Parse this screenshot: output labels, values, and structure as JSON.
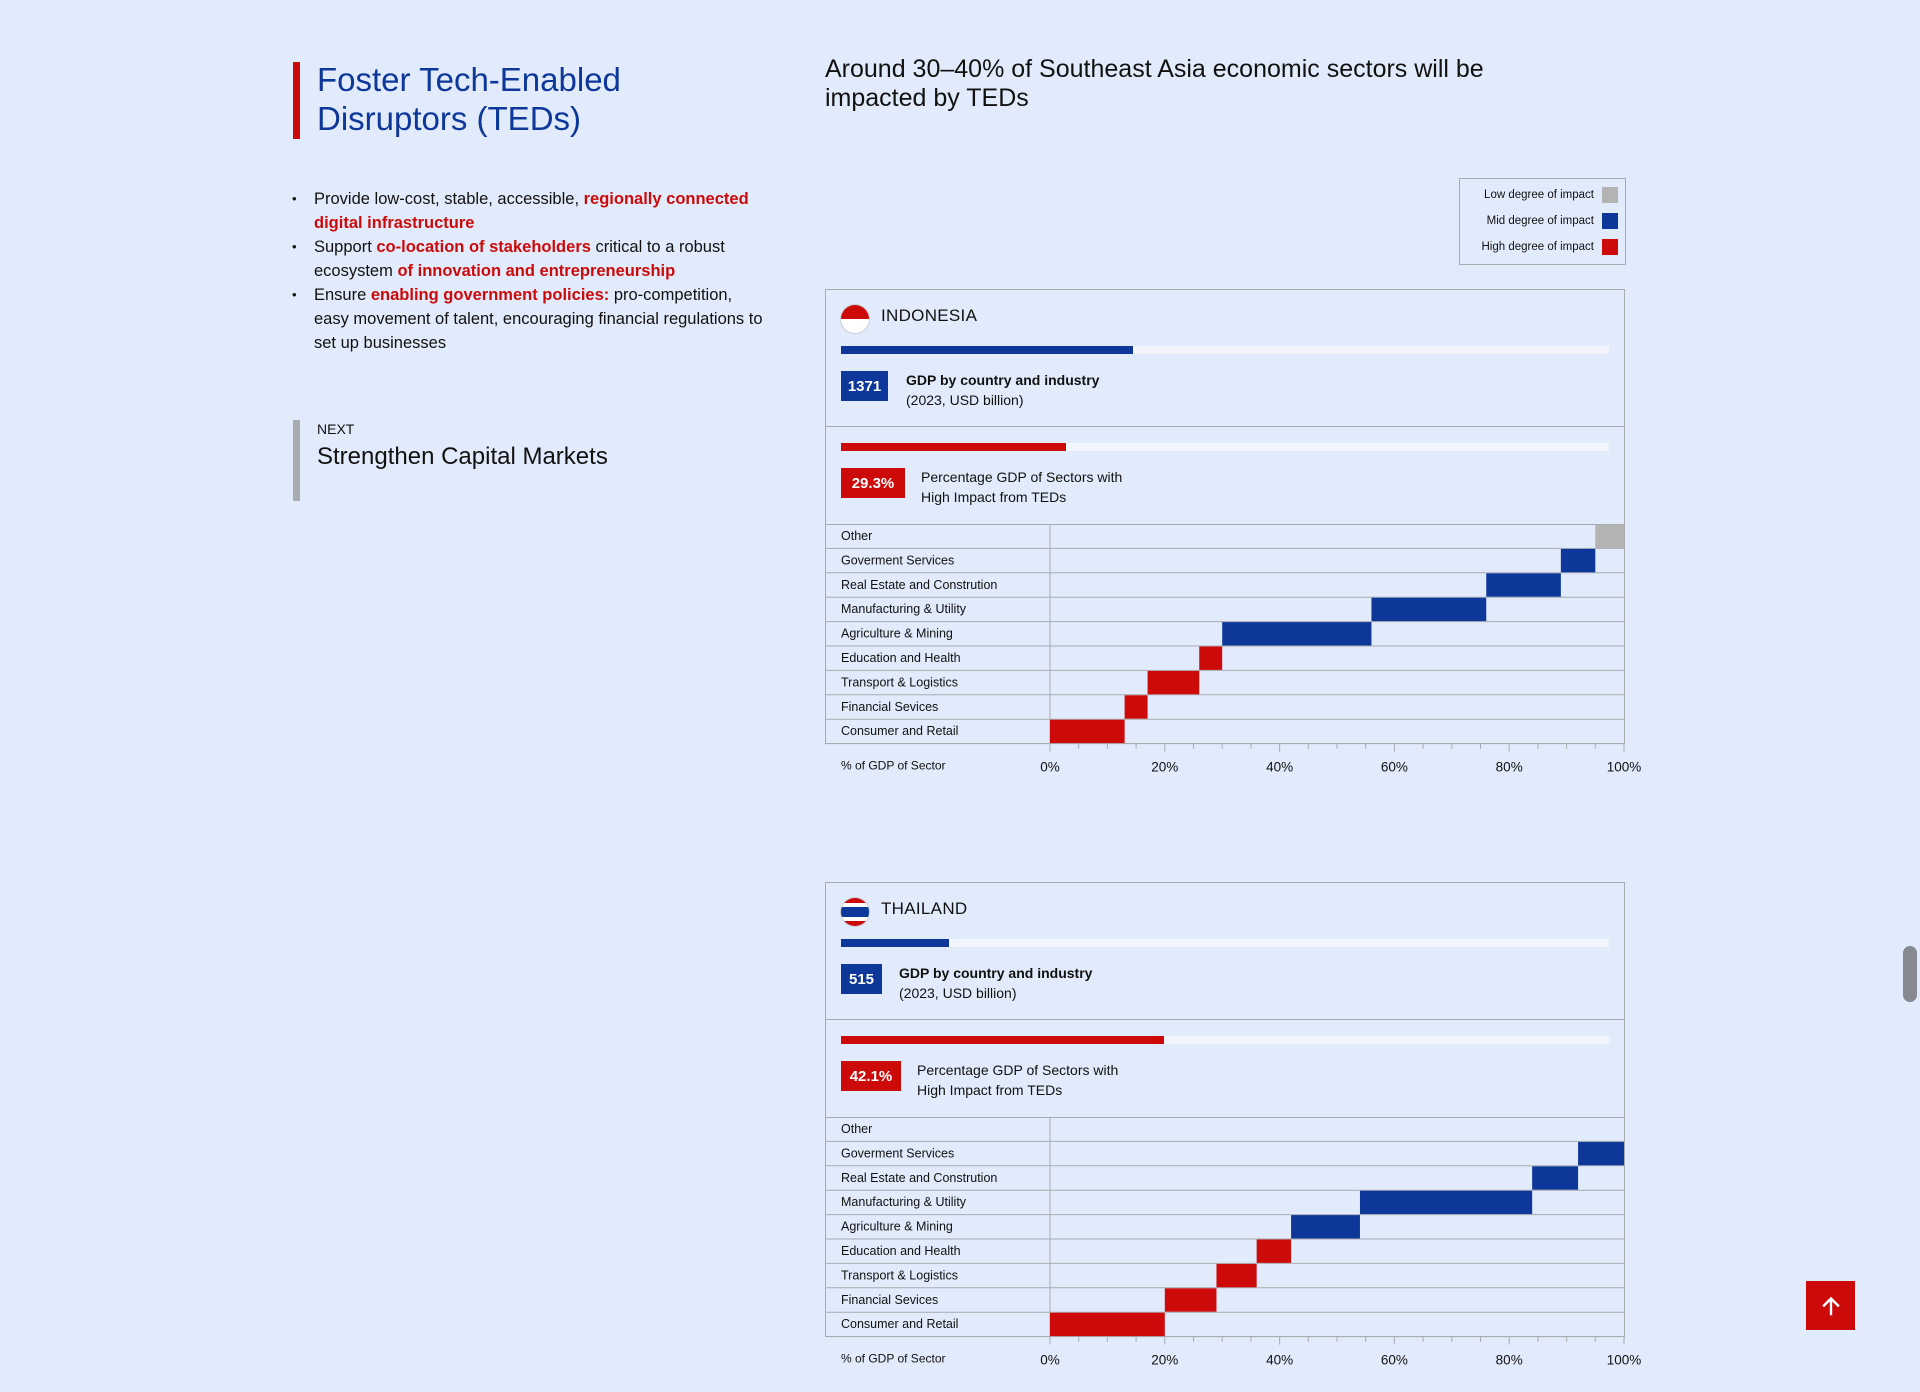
{
  "left": {
    "title_line1": "Foster Tech-Enabled",
    "title_line2": "Disruptors (TEDs)",
    "bullets": [
      {
        "a": "Provide low-cost, stable, accessible, ",
        "b": "regionally connected digital infrastructure",
        "c": ""
      },
      {
        "a": "Support ",
        "b": "co-location of stakeholders",
        "c": " critical to a robust ecosystem ",
        "d": "of innovation and entrepreneurship"
      },
      {
        "a": "Ensure ",
        "b": "enabling government policies:",
        "c": " pro-competition, easy movement of talent, encouraging financial regulations to set up businesses"
      }
    ],
    "next_label": "NEXT",
    "next_title": "Strengthen Capital Markets"
  },
  "heading": "Around 30–40% of Southeast Asia economic sectors will be impacted by TEDs",
  "legend": {
    "low": "Low degree of impact",
    "mid": "Mid degree of impact",
    "high": "High degree of impact"
  },
  "colors": {
    "low": "#b3b3b3",
    "mid": "#0d3799",
    "high": "#cc0a0a",
    "track": "#f2f5fc"
  },
  "panels": [
    {
      "country": "INDONESIA",
      "gdp_value": "1371",
      "gdp_label": "GDP by country and industry",
      "gdp_sub": "(2023, USD billion)",
      "gdp_bar_fraction": 0.38,
      "pct_value": "29.3%",
      "pct_label_1": "Percentage GDP of Sectors with",
      "pct_label_2": "High Impact from TEDs",
      "pct_bar_fraction": 0.293
    },
    {
      "country": "THAILAND",
      "gdp_value": "515",
      "gdp_label": "GDP by country and industry",
      "gdp_sub": "(2023, USD billion)",
      "gdp_bar_fraction": 0.14,
      "pct_value": "42.1%",
      "pct_label_1": "Percentage GDP of Sectors with",
      "pct_label_2": "High Impact from TEDs",
      "pct_bar_fraction": 0.421
    }
  ],
  "chart_data": [
    {
      "type": "bar",
      "title": "INDONESIA",
      "xlabel": "% of GDP of Sector",
      "xticks": [
        "0%",
        "20%",
        "40%",
        "60%",
        "80%",
        "100%"
      ],
      "xlim": [
        0,
        100
      ],
      "categories": [
        "Other",
        "Goverment Services",
        "Real Estate and Constrution",
        "Manufacturing & Utility",
        "Agriculture & Mining",
        "Education and Health",
        "Transport & Logistics",
        "Financial Sevices",
        "Consumer and Retail"
      ],
      "start": [
        95,
        89,
        76,
        56,
        30,
        26,
        17,
        13,
        0
      ],
      "values": [
        5,
        6,
        13,
        20,
        26,
        4,
        9,
        4,
        13
      ],
      "impact": [
        "low",
        "mid",
        "mid",
        "mid",
        "mid",
        "high",
        "high",
        "high",
        "high"
      ]
    },
    {
      "type": "bar",
      "title": "THAILAND",
      "xlabel": "% of GDP of Sector",
      "xticks": [
        "0%",
        "20%",
        "40%",
        "60%",
        "80%",
        "100%"
      ],
      "xlim": [
        0,
        100
      ],
      "categories": [
        "Other",
        "Goverment Services",
        "Real Estate and Constrution",
        "Manufacturing & Utility",
        "Agriculture & Mining",
        "Education and Health",
        "Transport & Logistics",
        "Financial Sevices",
        "Consumer and Retail"
      ],
      "start": [
        100,
        92,
        84,
        54,
        42,
        36,
        29,
        20,
        0
      ],
      "values": [
        0,
        8,
        8,
        30,
        12,
        6,
        7,
        9,
        20
      ],
      "impact": [
        "low",
        "mid",
        "mid",
        "mid",
        "mid",
        "high",
        "high",
        "high",
        "high"
      ]
    }
  ]
}
